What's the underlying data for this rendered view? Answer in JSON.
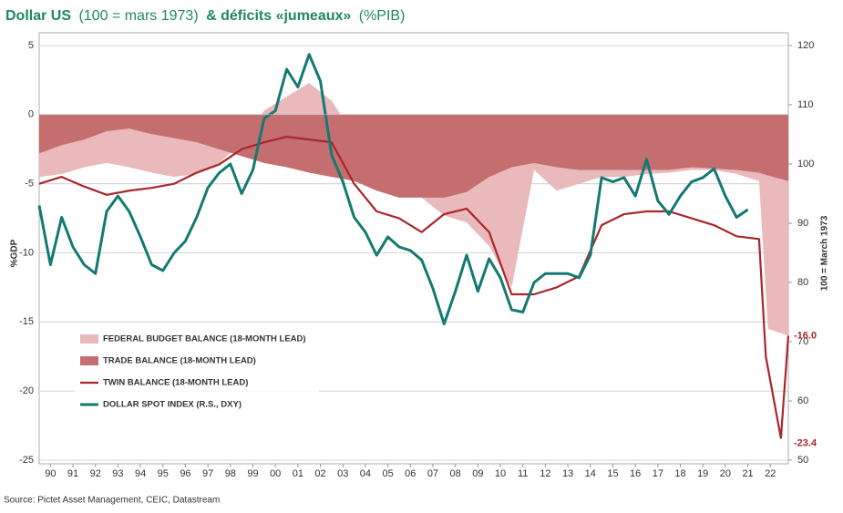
{
  "chart_data": {
    "type": "combo",
    "title": [
      "Dollar US",
      "(100 = mars 1973)",
      "& déficits «jumeaux»",
      "(%PIB)"
    ],
    "ylabel": "%GDP",
    "y2label": "100 = March 1973",
    "source": "Source: Pictet Asset Management, CEIC, Datastream",
    "xlim": [
      1990,
      2023.3
    ],
    "xticks": [
      {
        "value": 1990.5,
        "label": "90"
      },
      {
        "value": 1991.5,
        "label": "91"
      },
      {
        "value": 1992.5,
        "label": "92"
      },
      {
        "value": 1993.5,
        "label": "93"
      },
      {
        "value": 1994.5,
        "label": "94"
      },
      {
        "value": 1995.5,
        "label": "95"
      },
      {
        "value": 1996.5,
        "label": "96"
      },
      {
        "value": 1997.5,
        "label": "97"
      },
      {
        "value": 1998.5,
        "label": "98"
      },
      {
        "value": 1999.5,
        "label": "99"
      },
      {
        "value": 2000.5,
        "label": "00"
      },
      {
        "value": 2001.5,
        "label": "01"
      },
      {
        "value": 2002.5,
        "label": "02"
      },
      {
        "value": 2003.5,
        "label": "03"
      },
      {
        "value": 2004.5,
        "label": "04"
      },
      {
        "value": 2005.5,
        "label": "05"
      },
      {
        "value": 2006.5,
        "label": "06"
      },
      {
        "value": 2007.5,
        "label": "07"
      },
      {
        "value": 2008.5,
        "label": "08"
      },
      {
        "value": 2009.5,
        "label": "09"
      },
      {
        "value": 2010.5,
        "label": "10"
      },
      {
        "value": 2011.5,
        "label": "11"
      },
      {
        "value": 2012.5,
        "label": "12"
      },
      {
        "value": 2013.5,
        "label": "13"
      },
      {
        "value": 2014.5,
        "label": "14"
      },
      {
        "value": 2015.5,
        "label": "15"
      },
      {
        "value": 2016.5,
        "label": "16"
      },
      {
        "value": 2017.5,
        "label": "17"
      },
      {
        "value": 2018.5,
        "label": "18"
      },
      {
        "value": 2019.5,
        "label": "19"
      },
      {
        "value": 2020.5,
        "label": "20"
      },
      {
        "value": 2021.5,
        "label": "21"
      },
      {
        "value": 2022.5,
        "label": "22"
      }
    ],
    "ylim": [
      -25,
      5
    ],
    "yticks": [
      -25,
      -20,
      -15,
      -10,
      -5,
      0,
      5
    ],
    "y2lim": [
      50,
      120
    ],
    "y2ticks": [
      50,
      60,
      70,
      80,
      90,
      100,
      110,
      120
    ],
    "grid": true,
    "series": [
      {
        "name": "FEDERAL BUDGET BALANCE (18-MONTH LEAD)",
        "type": "area",
        "color": "#e9b9bb",
        "x": [
          1990,
          1991,
          1992,
          1993,
          1994,
          1995,
          1996,
          1997,
          1998,
          1999,
          2000,
          2001,
          2002,
          2003,
          2004,
          2005,
          2006,
          2007,
          2008,
          2009,
          2010,
          2011,
          2012,
          2013,
          2014,
          2015,
          2016,
          2017,
          2018,
          2019,
          2020,
          2021,
          2022,
          2022.4,
          2023.3
        ],
        "values": [
          -4.5,
          -4.3,
          -3.8,
          -3.5,
          -3.8,
          -4.2,
          -4.5,
          -4.3,
          -3.5,
          -2.0,
          0.3,
          1.3,
          2.3,
          1.0,
          -1.5,
          -3.5,
          -5.0,
          -6.0,
          -7.3,
          -7.8,
          -9.5,
          -12.5,
          -4.0,
          -5.5,
          -5.0,
          -4.5,
          -4.5,
          -4.3,
          -4.2,
          -4.0,
          -4.0,
          -4.3,
          -4.8,
          -15.5,
          -16
        ]
      },
      {
        "name": "TRADE BALANCE (18-MONTH LEAD)",
        "type": "area",
        "color": "#c46e70",
        "x": [
          1990,
          1991,
          1992,
          1993,
          1994,
          1995,
          1996,
          1997,
          1998,
          1999,
          2000,
          2001,
          2002,
          2003,
          2004,
          2005,
          2006,
          2007,
          2008,
          2009,
          2010,
          2011,
          2012,
          2013,
          2014,
          2015,
          2016,
          2017,
          2018,
          2019,
          2020,
          2021,
          2022,
          2022.4,
          2023.3
        ],
        "values": [
          -2.8,
          -2.2,
          -1.8,
          -1.2,
          -1.0,
          -1.4,
          -1.7,
          -2.0,
          -2.5,
          -3.0,
          -3.5,
          -3.8,
          -4.2,
          -4.5,
          -4.8,
          -5.5,
          -6.0,
          -6.0,
          -6.0,
          -5.6,
          -4.5,
          -3.8,
          -3.5,
          -3.8,
          -4.0,
          -4.0,
          -4.0,
          -4.0,
          -4.0,
          -3.8,
          -3.9,
          -4.0,
          -4.2,
          -4.4,
          -4.8
        ]
      },
      {
        "name": "TWIN BALANCE (18-MONTH LEAD)",
        "type": "line",
        "color": "#a8272b",
        "x": [
          1990,
          1991,
          1992,
          1993,
          1994,
          1995,
          1996,
          1997,
          1998,
          1999,
          2000,
          2001,
          2002,
          2003,
          2004,
          2005,
          2006,
          2007,
          2008,
          2009,
          2010,
          2011,
          2012,
          2013,
          2014,
          2015,
          2016,
          2017,
          2018,
          2019,
          2020,
          2021,
          2022,
          2022.3,
          2022.97,
          2023.3
        ],
        "values": [
          -5.0,
          -4.5,
          -5.2,
          -5.8,
          -5.5,
          -5.3,
          -5.0,
          -4.2,
          -3.6,
          -2.5,
          -2.0,
          -1.6,
          -1.8,
          -2.0,
          -5.0,
          -7.0,
          -7.5,
          -8.5,
          -7.2,
          -6.8,
          -8.5,
          -13.0,
          -13.0,
          -12.5,
          -11.7,
          -8.0,
          -7.2,
          -7.0,
          -7.0,
          -7.5,
          -8.0,
          -8.8,
          -9.0,
          -17.5,
          -23.4,
          -16.0
        ],
        "value_labels": [
          null,
          null,
          null,
          null,
          null,
          null,
          null,
          null,
          null,
          null,
          null,
          null,
          null,
          null,
          null,
          null,
          null,
          null,
          null,
          null,
          null,
          null,
          null,
          null,
          null,
          null,
          null,
          null,
          null,
          null,
          null,
          null,
          null,
          null,
          "-23.4",
          "-16.0"
        ]
      },
      {
        "name": "DOLLAR SPOT INDEX (R.S., DXY)",
        "type": "line",
        "axis": "y2",
        "color": "#127a72",
        "x": [
          1990,
          1990.5,
          1991,
          1991.5,
          1992,
          1992.5,
          1993,
          1993.5,
          1994,
          1994.5,
          1995,
          1995.5,
          1996,
          1996.5,
          1997,
          1997.5,
          1998,
          1998.5,
          1999,
          1999.5,
          2000,
          2000.5,
          2001,
          2001.5,
          2002,
          2002.5,
          2003,
          2003.5,
          2004,
          2004.5,
          2005,
          2005.5,
          2006,
          2006.5,
          2007,
          2007.5,
          2008,
          2008.5,
          2009,
          2009.5,
          2010,
          2010.5,
          2011,
          2011.5,
          2012,
          2012.5,
          2013,
          2013.5,
          2014,
          2014.5,
          2015,
          2015.5,
          2016,
          2016.5,
          2017,
          2017.5,
          2018,
          2018.5,
          2019,
          2019.5,
          2020,
          2020.5,
          2021,
          2021.5
        ],
        "values": [
          93,
          83,
          91,
          86,
          83,
          81.5,
          92,
          94.6,
          92,
          87.7,
          83,
          82,
          85,
          87,
          91,
          96,
          98.5,
          100,
          95,
          99,
          107.7,
          109,
          116,
          113,
          118.5,
          114,
          101.5,
          97,
          91,
          88.5,
          84.6,
          87.7,
          86,
          85.4,
          83.8,
          79,
          73,
          78.5,
          84.6,
          78.5,
          84,
          80.8,
          75.4,
          75,
          80,
          81.5,
          81.5,
          81.5,
          80.8,
          84.6,
          97.7,
          97,
          97.7,
          94.6,
          100.8,
          93.8,
          91.5,
          94.6,
          97,
          97.7,
          99.2,
          94.6,
          91,
          92.3
        ]
      }
    ]
  }
}
